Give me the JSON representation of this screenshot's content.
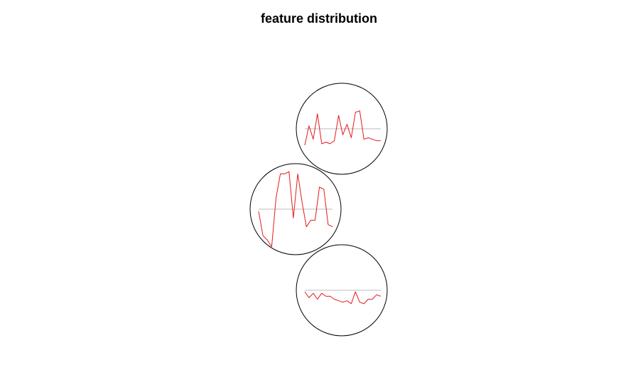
{
  "chart_data": {
    "type": "line",
    "title": "feature distribution",
    "xlabel": "",
    "ylabel": "",
    "grid": false,
    "legend": "none",
    "colors": {
      "circle": "#000000",
      "series": "#e31a1c",
      "reference": "#bbbbbb"
    },
    "series": [
      {
        "values": [
          -0.55,
          0.1,
          -0.35,
          0.5,
          -0.5,
          -0.45,
          -0.5,
          -0.4,
          0.45,
          -0.2,
          0.15,
          -0.3,
          0.55,
          0.6,
          -0.35,
          -0.3,
          -0.35,
          -0.4,
          -0.4
        ]
      },
      {
        "values": [
          -0.05,
          -0.6,
          -0.7,
          -0.85,
          0.25,
          0.8,
          0.8,
          0.85,
          -0.2,
          0.8,
          0.15,
          -0.4,
          -0.25,
          -0.25,
          0.5,
          0.45,
          -0.35,
          -0.4
        ]
      },
      {
        "values": [
          -0.05,
          -0.25,
          -0.1,
          -0.3,
          -0.1,
          -0.2,
          -0.2,
          -0.3,
          -0.35,
          -0.4,
          -0.35,
          -0.45,
          -0.05,
          -0.4,
          -0.45,
          -0.3,
          -0.3,
          -0.15,
          -0.2
        ]
      }
    ]
  }
}
